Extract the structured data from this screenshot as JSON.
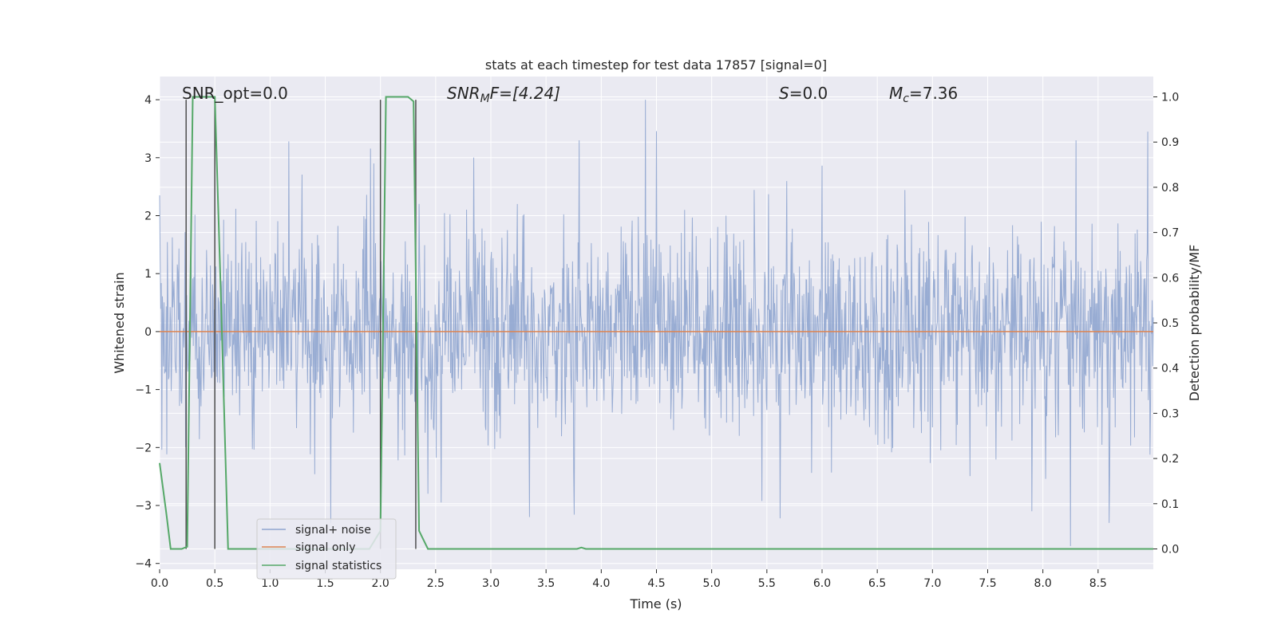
{
  "chart_data": {
    "type": "line",
    "title": "stats at each timestep for test data 17857 [signal=0]",
    "xlabel": "Time (s)",
    "ylabel_left": "Whitened strain",
    "ylabel_right": "Detection probability/MF",
    "xlim": [
      0.0,
      9.0
    ],
    "ylim_left": [
      -4.1,
      4.4
    ],
    "ylim_right": [
      -0.045,
      1.045
    ],
    "x_ticks": [
      "0.0",
      "0.5",
      "1.0",
      "1.5",
      "2.0",
      "2.5",
      "3.0",
      "3.5",
      "4.0",
      "4.5",
      "5.0",
      "5.5",
      "6.0",
      "6.5",
      "7.0",
      "7.5",
      "8.0",
      "8.5"
    ],
    "x_tick_values": [
      0.0,
      0.5,
      1.0,
      1.5,
      2.0,
      2.5,
      3.0,
      3.5,
      4.0,
      4.5,
      5.0,
      5.5,
      6.0,
      6.5,
      7.0,
      7.5,
      8.0,
      8.5
    ],
    "y_left_ticks": [
      "4",
      "3",
      "2",
      "1",
      "0",
      "−1",
      "−2",
      "−3",
      "−4"
    ],
    "y_left_tick_values": [
      4,
      3,
      2,
      1,
      0,
      -1,
      -2,
      -3,
      -4
    ],
    "y_right_ticks": [
      "1.0",
      "0.9",
      "0.8",
      "0.7",
      "0.6",
      "0.5",
      "0.4",
      "0.3",
      "0.2",
      "0.1",
      "0.0"
    ],
    "y_right_tick_values": [
      1.0,
      0.9,
      0.8,
      0.7,
      0.6,
      0.5,
      0.4,
      0.3,
      0.2,
      0.1,
      0.0
    ],
    "grid": true,
    "legend_placement": "lower-left",
    "annotations": {
      "snr_opt": "SNR_opt=0.0",
      "snr_mf_main": "SNR",
      "snr_mf_sub": "M",
      "snr_mf_rest": "F=[4.24]",
      "s_main": "S",
      "s_rest": "=0.0",
      "mc_main": "M",
      "mc_sub": "c",
      "mc_rest": "=7.36"
    },
    "series": [
      {
        "name": "signal+ noise",
        "color": "#8fa5cf",
        "kind": "noise",
        "sample_rate_hz": 200,
        "envelope_std": 0.9,
        "notable_peaks": [
          [
            0.0,
            2.35
          ],
          [
            1.17,
            3.28
          ],
          [
            1.94,
            2.9
          ],
          [
            3.8,
            3.3
          ],
          [
            4.4,
            4.0
          ],
          [
            8.3,
            3.3
          ],
          [
            8.95,
            3.45
          ],
          [
            1.55,
            -3.3
          ],
          [
            3.35,
            -3.2
          ],
          [
            7.9,
            -3.1
          ],
          [
            8.25,
            -3.7
          ],
          [
            8.6,
            -3.3
          ]
        ]
      },
      {
        "name": "signal only",
        "color": "#dd8452",
        "x": [
          0.0,
          9.0
        ],
        "y": [
          0.0,
          0.0
        ]
      },
      {
        "name": "signal statistics",
        "color": "#55a868",
        "axis": "right",
        "x": [
          0.0,
          0.06,
          0.1,
          0.2,
          0.25,
          0.3,
          0.5,
          0.55,
          0.62,
          1.0,
          1.5,
          1.9,
          2.0,
          2.05,
          2.25,
          2.3,
          2.35,
          2.43,
          3.0,
          3.5,
          3.78,
          3.82,
          3.86,
          4.5,
          5.0,
          6.0,
          7.0,
          8.0,
          9.0
        ],
        "y": [
          0.19,
          0.08,
          0.0,
          0.0,
          0.005,
          1.0,
          1.0,
          0.6,
          0.0,
          0.0,
          0.0,
          0.0,
          0.04,
          1.0,
          1.0,
          0.99,
          0.04,
          0.0,
          0.0,
          0.0,
          0.0,
          0.003,
          0.0,
          0.0,
          0.0,
          0.0,
          0.0,
          0.0,
          0.0
        ]
      }
    ],
    "vertical_markers": [
      {
        "x": 0.24,
        "y_top": 4.0,
        "y_bottom_prob": 0.0
      },
      {
        "x": 0.5,
        "y_top": 4.0,
        "y_bottom_prob": 0.0
      },
      {
        "x": 2.0,
        "y_top": 4.0,
        "y_bottom_prob": 0.0
      },
      {
        "x": 2.32,
        "y_top": 4.0,
        "y_bottom_prob": 0.0
      }
    ],
    "colors": {
      "plot_background": "#eaeaf2",
      "grid": "#ffffff",
      "marker": "#4f4f4f"
    }
  }
}
